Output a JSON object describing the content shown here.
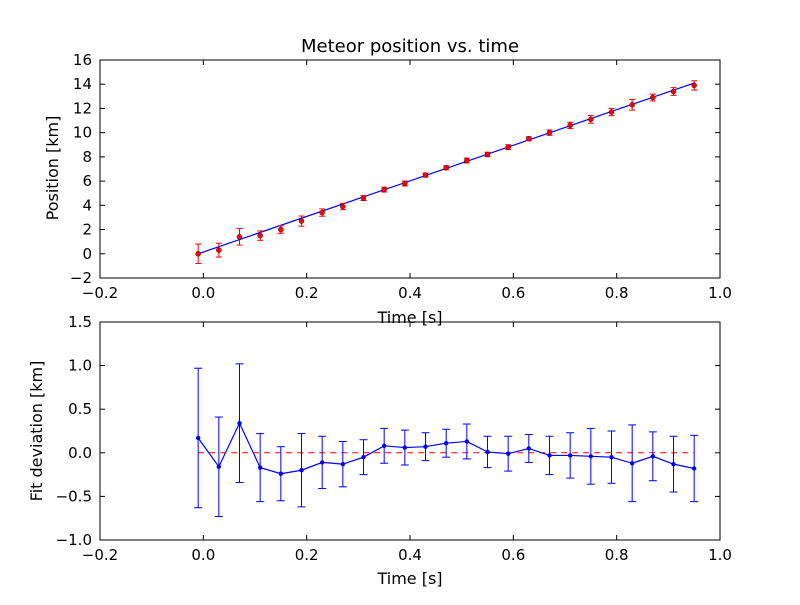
{
  "chart_data": [
    {
      "type": "scatter",
      "title": "Meteor position vs. time",
      "xlabel": "Time [s]",
      "ylabel": "Position [km]",
      "xlim": [
        -0.2,
        1.0
      ],
      "ylim": [
        -2,
        16
      ],
      "xticks": [
        -0.2,
        0.0,
        0.2,
        0.4,
        0.6,
        0.8,
        1.0
      ],
      "xtick_labels": [
        "−0.2",
        "0.0",
        "0.2",
        "0.4",
        "0.6",
        "0.8",
        "1.0"
      ],
      "yticks": [
        -2,
        0,
        2,
        4,
        6,
        8,
        10,
        12,
        14,
        16
      ],
      "ytick_labels": [
        "−2",
        "0",
        "2",
        "4",
        "6",
        "8",
        "10",
        "12",
        "14",
        "16"
      ],
      "grid": false,
      "colors": {
        "points": "#ff0000",
        "errorbars": "#ff0000",
        "fit": "#0000ff"
      },
      "x": [
        -0.01,
        0.03,
        0.07,
        0.11,
        0.15,
        0.19,
        0.23,
        0.27,
        0.31,
        0.35,
        0.39,
        0.43,
        0.47,
        0.51,
        0.55,
        0.59,
        0.63,
        0.67,
        0.71,
        0.75,
        0.79,
        0.83,
        0.87,
        0.91,
        0.95
      ],
      "y": [
        0.0,
        0.3,
        1.4,
        1.5,
        2.0,
        2.7,
        3.4,
        3.9,
        4.6,
        5.3,
        5.8,
        6.5,
        7.1,
        7.7,
        8.2,
        8.8,
        9.5,
        10.0,
        10.6,
        11.1,
        11.7,
        12.3,
        12.9,
        13.4,
        13.9
      ],
      "y_err": [
        0.8,
        0.57,
        0.68,
        0.39,
        0.31,
        0.42,
        0.3,
        0.26,
        0.2,
        0.2,
        0.2,
        0.16,
        0.16,
        0.2,
        0.18,
        0.2,
        0.16,
        0.22,
        0.26,
        0.32,
        0.3,
        0.44,
        0.28,
        0.32,
        0.38
      ],
      "fit_line": {
        "x": [
          -0.01,
          0.95
        ],
        "y": [
          0.0,
          14.1
        ]
      }
    },
    {
      "type": "line",
      "xlabel": "Time [s]",
      "ylabel": "Fit deviation [km]",
      "xlim": [
        -0.2,
        1.0
      ],
      "ylim": [
        -1.0,
        1.5
      ],
      "xticks": [
        -0.2,
        0.0,
        0.2,
        0.4,
        0.6,
        0.8,
        1.0
      ],
      "xtick_labels": [
        "−0.2",
        "0.0",
        "0.2",
        "0.4",
        "0.6",
        "0.8",
        "1.0"
      ],
      "yticks": [
        -1.0,
        -0.5,
        0.0,
        0.5,
        1.0,
        1.5
      ],
      "ytick_labels": [
        "−1.0",
        "−0.5",
        "0.0",
        "0.5",
        "1.0",
        "1.5"
      ],
      "grid": false,
      "colors": {
        "line": "#0000ff",
        "zero_line": "#ff0000"
      },
      "reference_line_y": 0.0,
      "x": [
        -0.01,
        0.03,
        0.07,
        0.11,
        0.15,
        0.19,
        0.23,
        0.27,
        0.31,
        0.35,
        0.39,
        0.43,
        0.47,
        0.51,
        0.55,
        0.59,
        0.63,
        0.67,
        0.71,
        0.75,
        0.79,
        0.83,
        0.87,
        0.91,
        0.95
      ],
      "y": [
        0.17,
        -0.16,
        0.34,
        -0.17,
        -0.24,
        -0.2,
        -0.11,
        -0.13,
        -0.05,
        0.08,
        0.06,
        0.07,
        0.11,
        0.13,
        0.01,
        -0.01,
        0.05,
        -0.03,
        -0.03,
        -0.04,
        -0.05,
        -0.12,
        -0.04,
        -0.13,
        -0.18
      ],
      "y_err": [
        0.8,
        0.57,
        0.68,
        0.39,
        0.31,
        0.42,
        0.3,
        0.26,
        0.2,
        0.2,
        0.2,
        0.16,
        0.16,
        0.2,
        0.18,
        0.2,
        0.16,
        0.22,
        0.26,
        0.32,
        0.3,
        0.44,
        0.28,
        0.32,
        0.38
      ]
    }
  ]
}
